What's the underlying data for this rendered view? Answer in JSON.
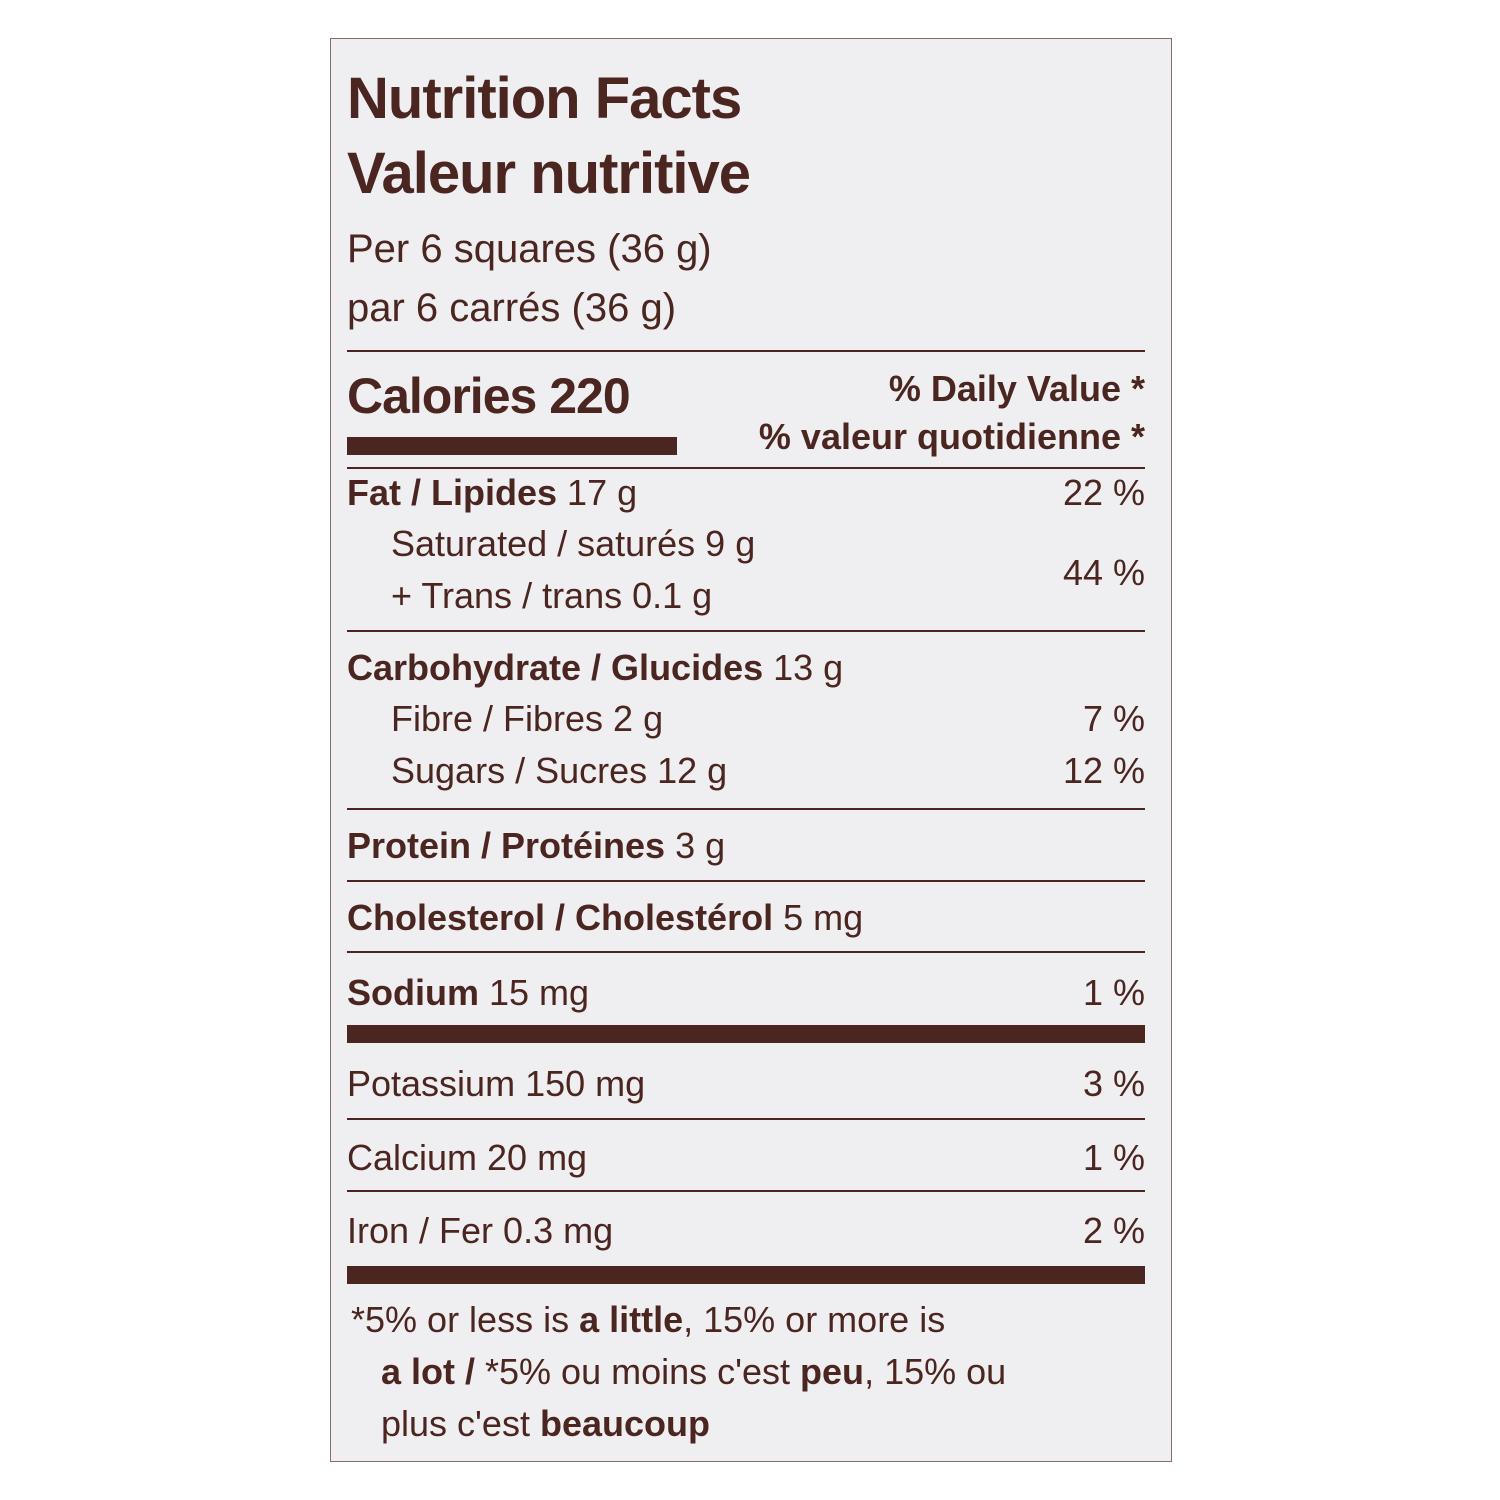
{
  "header": {
    "title_en": "Nutrition Facts",
    "title_fr": "Valeur nutritive",
    "serving_en": "Per 6 squares (36 g)",
    "serving_fr": "par 6 carrés (36 g)"
  },
  "calories": "Calories 220",
  "daily_value_header": [
    "% Daily Value *",
    "% valeur quotidienne *"
  ],
  "rows": {
    "fat": {
      "name": "Fat / Lipides",
      "amount": "17 g",
      "dv": "22 %"
    },
    "saturated_trans": {
      "saturated": "Saturated / saturés 9 g",
      "trans": "+ Trans / trans 0.1 g",
      "dv": "44 %"
    },
    "carbohydrate": {
      "name": "Carbohydrate / Glucides",
      "amount": "13 g"
    },
    "fibre": {
      "name": "Fibre / Fibres 2 g",
      "dv": "7 %"
    },
    "sugars": {
      "name": "Sugars / Sucres 12 g",
      "dv": "12 %"
    },
    "protein": {
      "name": "Protein / Protéines",
      "amount": "3 g"
    },
    "cholesterol": {
      "name": "Cholesterol / Cholestérol",
      "amount": "5 mg"
    },
    "sodium": {
      "name": "Sodium",
      "amount": "15 mg",
      "dv": "1 %"
    },
    "potassium": {
      "name": "Potassium 150 mg",
      "dv": "3 %"
    },
    "calcium": {
      "name": "Calcium 20 mg",
      "dv": "1 %"
    },
    "iron": {
      "name": "Iron / Fer 0.3 mg",
      "dv": "2 %"
    }
  },
  "footnote": [
    "*5% or less is ",
    "a little",
    ", 15% or more is",
    "a lot / ",
    "*5% ou moins c'est ",
    "peu",
    ", 15% ou",
    "plus c'est ",
    "beaucoup"
  ]
}
